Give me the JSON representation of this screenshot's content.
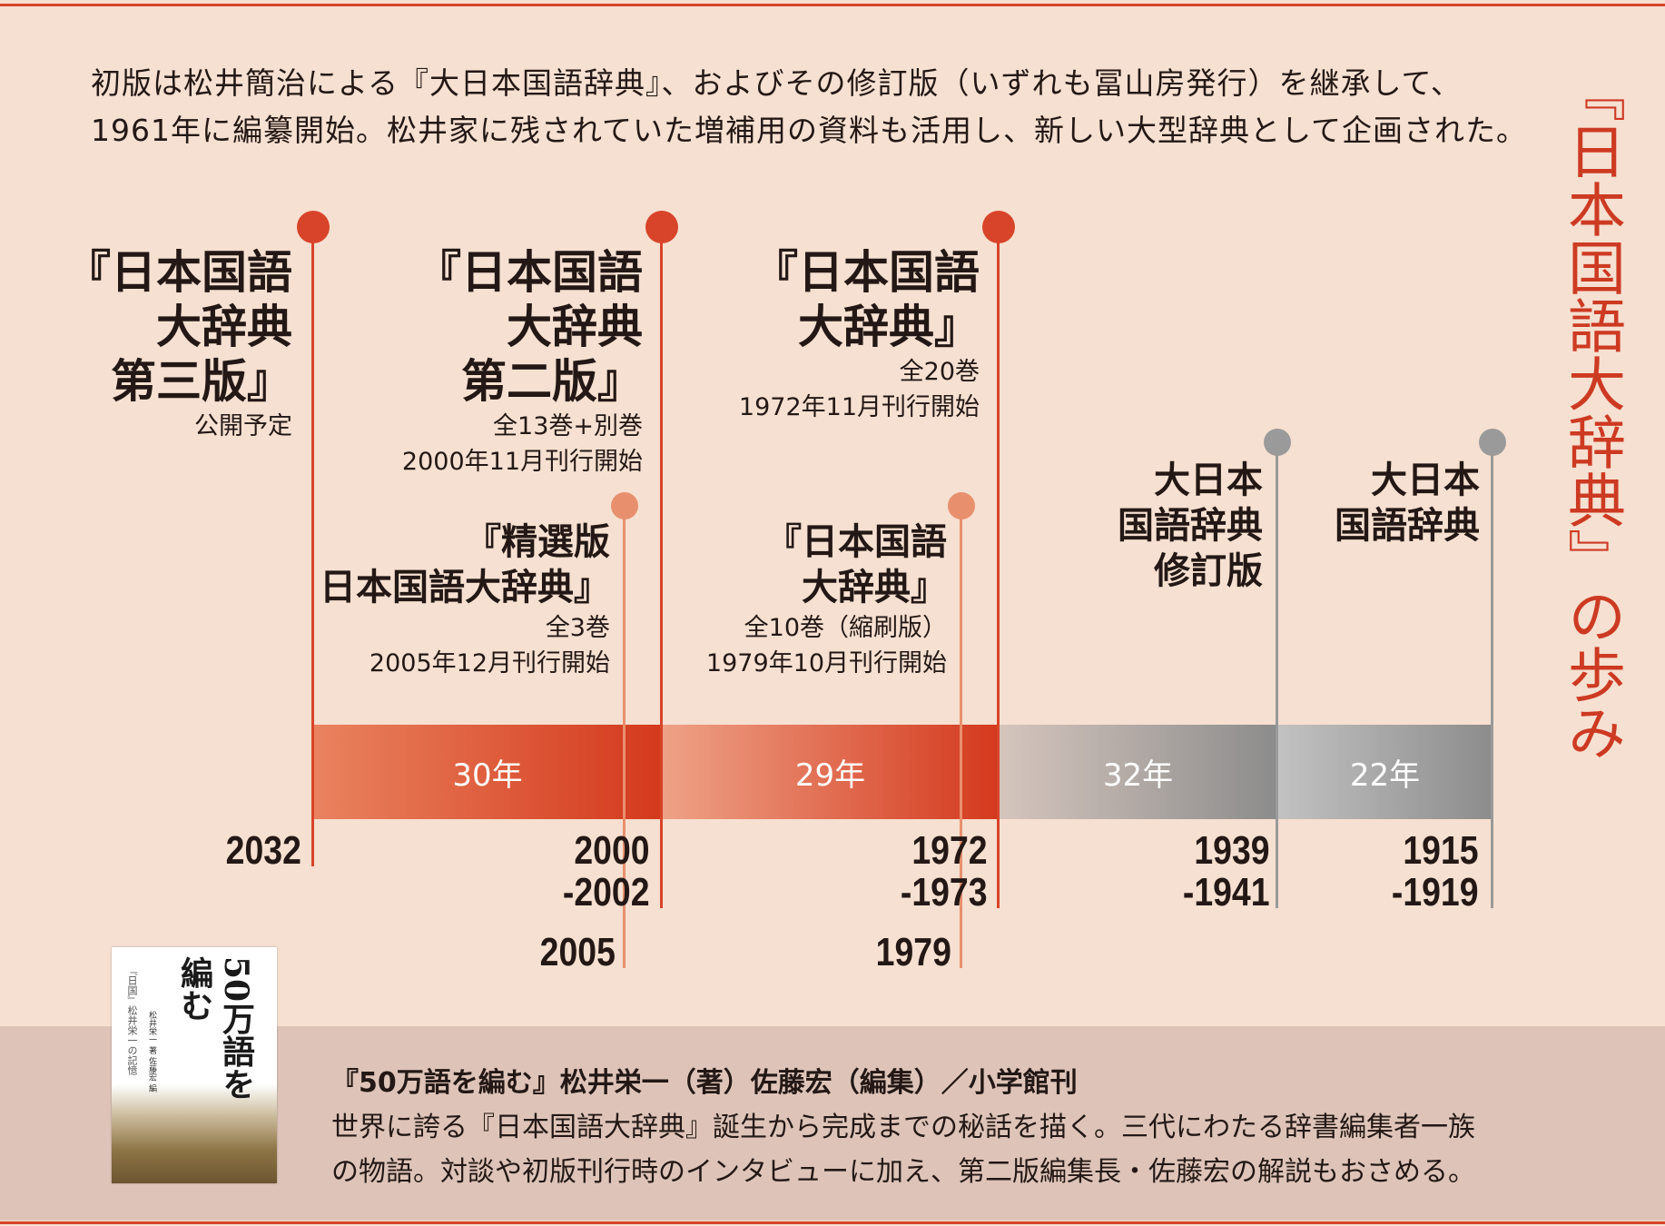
{
  "title": "『日本国語大辞典』の歩み",
  "intro": [
    "初版は松井簡治による『大日本国語辞典』、およびその修訂版（いずれも冨山房発行）を継承して、",
    "1961年に編纂開始。松井家に残されていた増補用の資料も活用し、新しい大型辞典として企画された。"
  ],
  "colors": {
    "accent": "#d8442a",
    "light_accent": "#e8906e",
    "gray": "#9a9a9a",
    "background": "#f6e0d1",
    "footer_band": "#dec4b8"
  },
  "editions": [
    {
      "title_lines": [
        "『日本国語",
        "大辞典",
        "第三版』"
      ],
      "notes": [
        "公開予定"
      ],
      "years": [
        "2032"
      ]
    },
    {
      "title_lines": [
        "『日本国語",
        "大辞典",
        "第二版』"
      ],
      "notes": [
        "全13巻+別巻",
        "2000年11月刊行開始"
      ],
      "years": [
        "2000",
        "-2002"
      ]
    },
    {
      "title_lines": [
        "『精選版",
        "日本国語大辞典』"
      ],
      "notes": [
        "全3巻",
        "2005年12月刊行開始"
      ],
      "years": [
        "2005"
      ]
    },
    {
      "title_lines": [
        "『日本国語",
        "大辞典』"
      ],
      "notes": [
        "全20巻",
        "1972年11月刊行開始"
      ],
      "years": [
        "1972",
        "-1973"
      ]
    },
    {
      "title_lines": [
        "『日本国語",
        "大辞典』"
      ],
      "notes": [
        "全10巻（縮刷版）",
        "1979年10月刊行開始"
      ],
      "years": [
        "1979"
      ]
    },
    {
      "title_lines": [
        "大日本",
        "国語辞典",
        "修訂版"
      ],
      "notes": [],
      "years": [
        "1939",
        "-1941"
      ]
    },
    {
      "title_lines": [
        "大日本",
        "国語辞典"
      ],
      "notes": [],
      "years": [
        "1915",
        "-1919"
      ]
    }
  ],
  "intervals": [
    "30年",
    "29年",
    "32年",
    "22年"
  ],
  "book": {
    "cover_title": "50万語を編む",
    "cover_subtitle": "『日国』松井栄一の記憶",
    "cover_authors": "松井栄一 著 佐藤宏 編",
    "heading": "『50万語を編む』松井栄一（著）佐藤宏（編集）／小学館刊",
    "description": [
      "世界に誇る『日本国語大辞典』誕生から完成までの秘話を描く。三代にわたる辞書編集者一族",
      "の物語。対談や初版刊行時のインタビューに加え、第二版編集長・佐藤宏の解説もおさめる。"
    ]
  }
}
